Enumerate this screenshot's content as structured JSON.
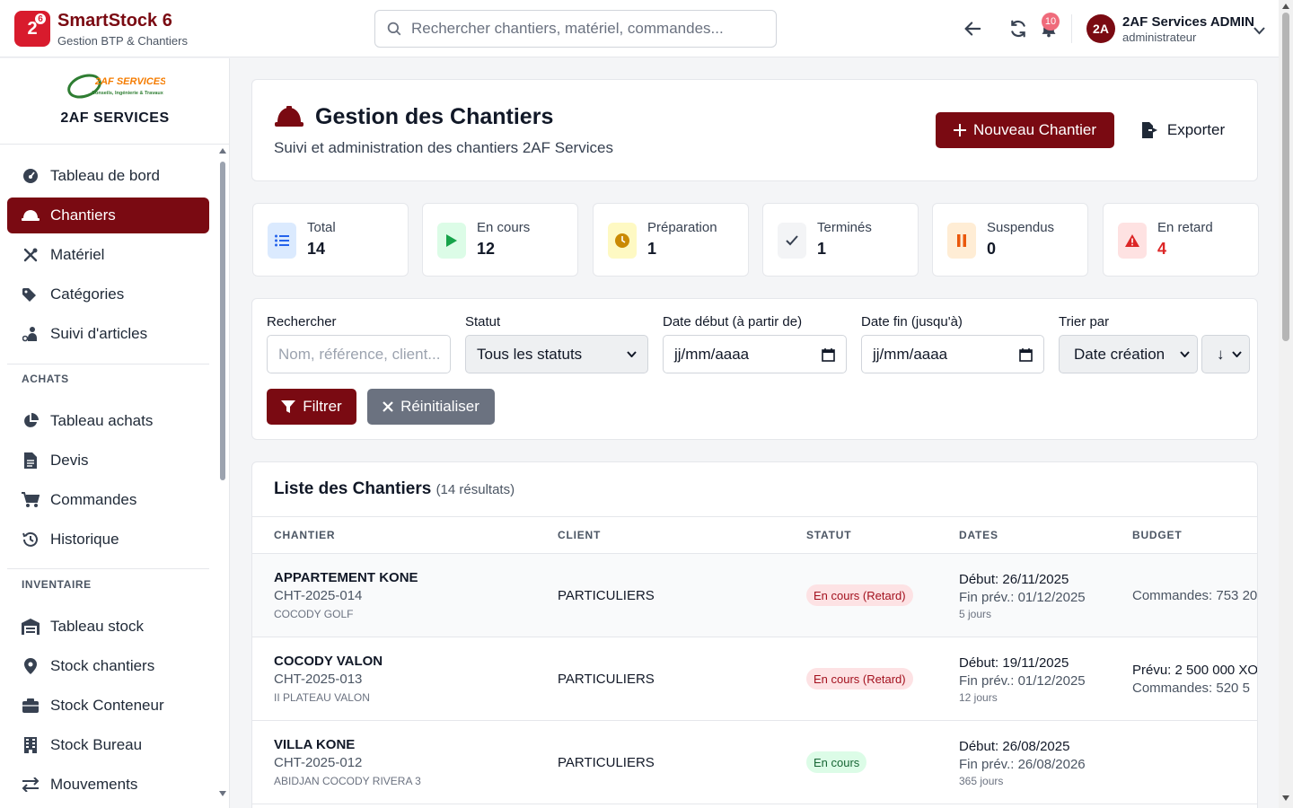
{
  "app": {
    "name": "SmartStock 6",
    "subtitle": "Gestion BTP & Chantiers",
    "badge": "2",
    "badge_sup": "6"
  },
  "search": {
    "placeholder": "Rechercher chantiers, matériel, commandes..."
  },
  "notifications": {
    "count": "10"
  },
  "user": {
    "initials": "2A",
    "name": "2AF Services ADMIN",
    "role": "administrateur"
  },
  "org": {
    "name": "2AF SERVICES",
    "logo_text": "2AF SERVICES",
    "logo_tagline": "Conseils, Ingénierie & Travaux"
  },
  "sidebar": {
    "items": [
      {
        "label": "Tableau de bord",
        "icon": "gauge-icon"
      },
      {
        "label": "Chantiers",
        "icon": "hard-hat-icon",
        "active": true
      },
      {
        "label": "Matériel",
        "icon": "tools-icon"
      },
      {
        "label": "Catégories",
        "icon": "tags-icon"
      },
      {
        "label": "Suivi d'articles",
        "icon": "person-tracking-icon"
      }
    ],
    "achats_title": "ACHATS",
    "achats": [
      {
        "label": "Tableau achats",
        "icon": "pie-chart-icon"
      },
      {
        "label": "Devis",
        "icon": "document-icon"
      },
      {
        "label": "Commandes",
        "icon": "cart-icon"
      },
      {
        "label": "Historique",
        "icon": "history-icon"
      }
    ],
    "inventaire_title": "INVENTAIRE",
    "inventaire": [
      {
        "label": "Tableau stock",
        "icon": "warehouse-icon"
      },
      {
        "label": "Stock chantiers",
        "icon": "map-pin-icon"
      },
      {
        "label": "Stock Conteneur",
        "icon": "container-icon"
      },
      {
        "label": "Stock Bureau",
        "icon": "building-icon"
      },
      {
        "label": "Mouvements",
        "icon": "swap-arrows-icon"
      }
    ]
  },
  "header": {
    "title": "Gestion des Chantiers",
    "subtitle": "Suivi et administration des chantiers 2AF Services",
    "new_button": "Nouveau Chantier",
    "export_button": "Exporter"
  },
  "stats": [
    {
      "label": "Total",
      "value": "14",
      "icon": "list-icon",
      "color": "#2563eb",
      "bg": "#dbeafe"
    },
    {
      "label": "En cours",
      "value": "12",
      "icon": "play-icon",
      "color": "#16a34a",
      "bg": "#dcfce7"
    },
    {
      "label": "Préparation",
      "value": "1",
      "icon": "clock-icon",
      "color": "#ca8a04",
      "bg": "#fef9c3"
    },
    {
      "label": "Terminés",
      "value": "1",
      "icon": "check-icon",
      "color": "#374151",
      "bg": "#f3f4f6"
    },
    {
      "label": "Suspendus",
      "value": "0",
      "icon": "pause-icon",
      "color": "#ea580c",
      "bg": "#ffedd5"
    },
    {
      "label": "En retard",
      "value": "4",
      "icon": "warning-icon",
      "color": "#dc2626",
      "bg": "#fee2e2",
      "value_color": "#dc2626"
    }
  ],
  "filters": {
    "search_label": "Rechercher",
    "search_placeholder": "Nom, référence, client...",
    "status_label": "Statut",
    "status_value": "Tous les statuts",
    "start_label": "Date début (à partir de)",
    "start_value": "jj/mm/aaaa",
    "end_label": "Date fin (jusqu'à)",
    "end_value": "jj/mm/aaaa",
    "sort_label": "Trier par",
    "sort_value": "Date création",
    "order_value": "↓",
    "filter_button": "Filtrer",
    "reset_button": "Réinitialiser"
  },
  "list": {
    "title": "Liste des Chantiers",
    "count": "(14 résultats)",
    "columns": [
      "CHANTIER",
      "CLIENT",
      "STATUT",
      "DATES",
      "BUDGET"
    ],
    "rows": [
      {
        "name": "APPARTEMENT KONE",
        "ref": "CHT-2025-014",
        "location": "COCODY GOLF",
        "client": "PARTICULIERS",
        "status": "En cours (Retard)",
        "start": "Début: 26/11/2025",
        "end": "Fin prév.: 01/12/2025",
        "duration": "5 jours",
        "budget_planned": "",
        "budget_orders": "Commandes: 753 20"
      },
      {
        "name": "COCODY VALON",
        "ref": "CHT-2025-013",
        "location": "II PLATEAU VALON",
        "client": "PARTICULIERS",
        "status": "En cours (Retard)",
        "start": "Début: 19/11/2025",
        "end": "Fin prév.: 01/12/2025",
        "duration": "12 jours",
        "budget_planned": "Prévu: 2 500 000 XO",
        "budget_orders": "Commandes: 520 5"
      },
      {
        "name": "VILLA KONE",
        "ref": "CHT-2025-012",
        "location": "ABIDJAN COCODY RIVERA 3",
        "client": "PARTICULIERS",
        "status": "En cours",
        "start": "Début: 26/08/2025",
        "end": "Fin prév.: 26/08/2026",
        "duration": "365 jours",
        "budget_planned": "",
        "budget_orders": ""
      }
    ]
  }
}
